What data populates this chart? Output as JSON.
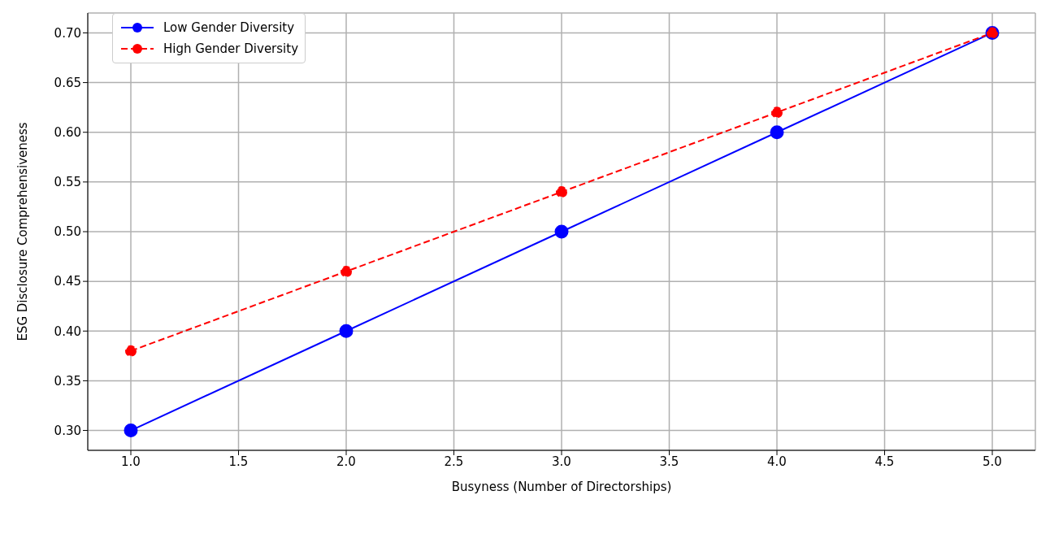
{
  "chart_data": {
    "type": "line",
    "xlabel": "Busyness (Number of Directorships)",
    "ylabel": "ESG Disclosure Comprehensiveness",
    "x": [
      1,
      2,
      3,
      4,
      5
    ],
    "series": [
      {
        "name": "Low Gender Diversity",
        "color": "#0000ff",
        "values": [
          0.3,
          0.4,
          0.5,
          0.6,
          0.7
        ],
        "line_style": "solid"
      },
      {
        "name": "High Gender Diversity",
        "color": "#ff0000",
        "values": [
          0.38,
          0.46,
          0.54,
          0.62,
          0.7
        ],
        "line_style": "dashed"
      }
    ],
    "xlim": [
      0.8,
      5.2
    ],
    "ylim": [
      0.28,
      0.72
    ],
    "xticks": [
      {
        "value": 1,
        "label": "1.0"
      },
      {
        "value": 1.5,
        "label": "1.5"
      },
      {
        "value": 2,
        "label": "2.0"
      },
      {
        "value": 2.5,
        "label": "2.5"
      },
      {
        "value": 3,
        "label": "3.0"
      },
      {
        "value": 3.5,
        "label": "3.5"
      },
      {
        "value": 4,
        "label": "4.0"
      },
      {
        "value": 4.5,
        "label": "4.5"
      },
      {
        "value": 5,
        "label": "5.0"
      }
    ],
    "yticks": [
      {
        "value": 0.3,
        "label": "0.30"
      },
      {
        "value": 0.35,
        "label": "0.35"
      },
      {
        "value": 0.4,
        "label": "0.40"
      },
      {
        "value": 0.45,
        "label": "0.45"
      },
      {
        "value": 0.5,
        "label": "0.50"
      },
      {
        "value": 0.55,
        "label": "0.55"
      },
      {
        "value": 0.6,
        "label": "0.60"
      },
      {
        "value": 0.65,
        "label": "0.65"
      },
      {
        "value": 0.7,
        "label": "0.70"
      }
    ],
    "grid": true,
    "legend": "top left",
    "marker": "circle"
  }
}
